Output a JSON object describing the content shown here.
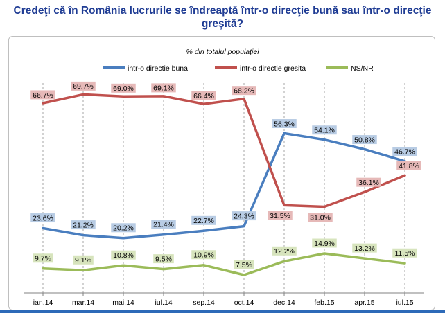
{
  "page": {
    "title_line1": "Credeţi că în România lucrurile se îndreaptă într-o direcţie bună sau într-o direcţie",
    "title_line2": "greşită?"
  },
  "colors": {
    "blue": "#4a7ebf",
    "red": "#c0504d",
    "green": "#9bbb59",
    "blue_label": "#b8cce4",
    "red_label": "#e6b9b8",
    "green_label": "#d7e4bd",
    "title": "#1f3c94"
  },
  "chart_data": {
    "type": "line",
    "subtitle": "% din totalul populaţiei",
    "categories": [
      "ian.14",
      "mar.14",
      "mai.14",
      "iul.14",
      "sep.14",
      "oct.14",
      "dec.14",
      "feb.15",
      "apr.15",
      "iul.15"
    ],
    "series": [
      {
        "name": "intr-o directie buna",
        "color": "#4a7ebf",
        "label_bg": "#b8cce4",
        "values": [
          23.6,
          21.2,
          20.2,
          21.4,
          22.7,
          24.3,
          56.3,
          54.1,
          50.8,
          46.7
        ],
        "labels": [
          "23.6%",
          "21.2%",
          "20.2%",
          "21.4%",
          "22.7%",
          "24.3%",
          "56.3%",
          "54.1%",
          "50.8%",
          "46.7%"
        ]
      },
      {
        "name": "intr-o directie gresita",
        "color": "#c0504d",
        "label_bg": "#e6b9b8",
        "values": [
          66.7,
          69.7,
          69.0,
          69.1,
          66.4,
          68.2,
          31.5,
          31.0,
          36.1,
          41.8
        ],
        "labels": [
          "66.7%",
          "69.7%",
          "69.0%",
          "69.1%",
          "66.4%",
          "68.2%",
          "31.5%",
          "31.0%",
          "36.1%",
          "41.8%"
        ]
      },
      {
        "name": "NS/NR",
        "color": "#9bbb59",
        "label_bg": "#d7e4bd",
        "values": [
          9.7,
          9.1,
          10.8,
          9.5,
          10.9,
          7.5,
          12.2,
          14.9,
          13.2,
          11.5
        ],
        "labels": [
          "9.7%",
          "9.1%",
          "10.8%",
          "9.5%",
          "10.9%",
          "7.5%",
          "12.2%",
          "14.9%",
          "13.2%",
          "11.5%"
        ]
      }
    ],
    "legend_position": "top",
    "grid": "vertical dashed"
  }
}
